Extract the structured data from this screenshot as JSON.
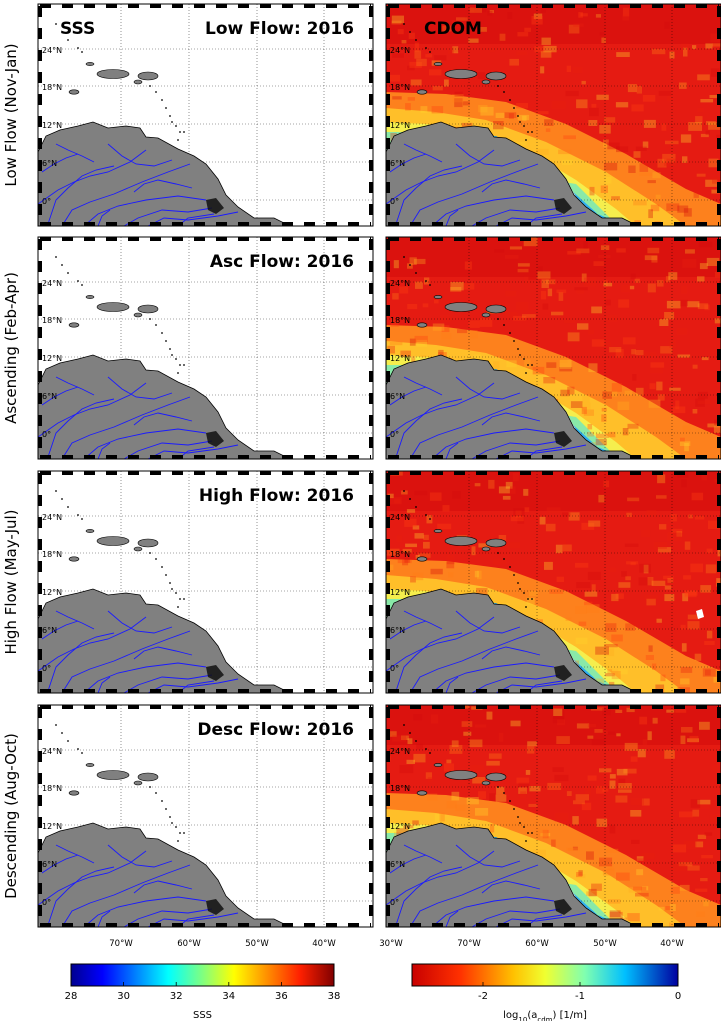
{
  "columns": {
    "left": "SSS",
    "right": "CDOM"
  },
  "rows": [
    {
      "label": "Low Flow (Nov-Jan)",
      "title": "Low Flow: 2016"
    },
    {
      "label": "Ascending (Feb-Apr)",
      "title": "Asc Flow: 2016"
    },
    {
      "label": "High Flow (May-Jul)",
      "title": "High Flow: 2016"
    },
    {
      "label": "Descending (Aug-Oct)",
      "title": "Desc Flow: 2016"
    }
  ],
  "lat_ticks": [
    "24°N",
    "18°N",
    "12°N",
    "6°N",
    "0°"
  ],
  "lon_ticks": [
    "70°W",
    "60°W",
    "50°W",
    "40°W",
    "30°W"
  ],
  "colorbars": {
    "sss": {
      "ticks": [
        "28",
        "30",
        "32",
        "34",
        "36",
        "38"
      ],
      "label": "SSS"
    },
    "cdom": {
      "ticks": [
        "-2",
        "-1",
        "0"
      ],
      "label": "log10(acdm) [1/m]"
    }
  },
  "colors": {
    "land": "#808080",
    "rivers": "#1a1aff",
    "coast": "#000000",
    "cdom_high": "#e11414",
    "cdom_low": "#0a1ad0"
  }
}
